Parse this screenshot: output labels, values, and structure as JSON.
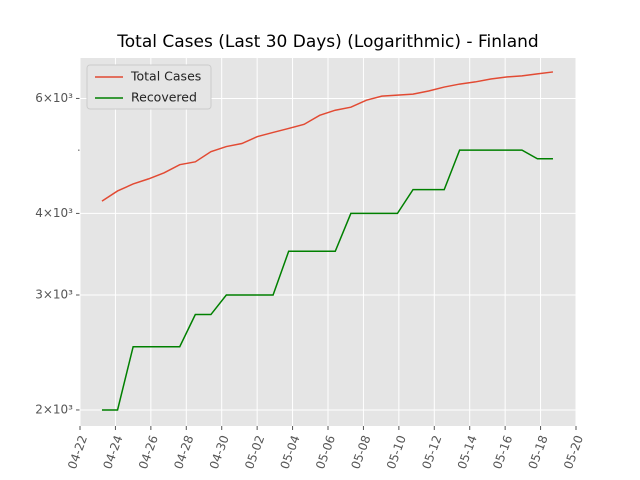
{
  "chart_data": {
    "type": "line",
    "title": "Total Cases (Last 30 Days) (Logarithmic) - Finland",
    "x": [
      1.24,
      2.12,
      3.0,
      3.87,
      4.75,
      5.63,
      6.51,
      7.39,
      8.26,
      9.14,
      10.02,
      10.9,
      11.78,
      12.65,
      13.53,
      14.41,
      15.29,
      16.17,
      17.04,
      17.92,
      18.8,
      19.68,
      20.56,
      21.43,
      22.31,
      23.19,
      24.07,
      24.95,
      25.82,
      26.7
    ],
    "series": [
      {
        "name": "Total Cases",
        "color": "#e24a33",
        "values": [
          4178,
          4330,
          4438,
          4518,
          4616,
          4750,
          4798,
          4974,
          5064,
          5118,
          5246,
          5322,
          5398,
          5476,
          5654,
          5756,
          5818,
          5964,
          6050,
          6070,
          6092,
          6160,
          6246,
          6312,
          6360,
          6426,
          6472,
          6496,
          6542,
          6588
        ]
      },
      {
        "name": "Recovered",
        "color": "#008000",
        "values": [
          2000,
          2000,
          2500,
          2500,
          2500,
          2500,
          2800,
          2800,
          3000,
          3000,
          3000,
          3000,
          3500,
          3500,
          3500,
          3500,
          4000,
          4000,
          4000,
          4000,
          4350,
          4350,
          4350,
          5000,
          5000,
          5000,
          5000,
          5000,
          4850,
          4850
        ]
      }
    ],
    "xlim": [
      0,
      28
    ],
    "xticks": [
      {
        "value": 0,
        "label": "04-22"
      },
      {
        "value": 2,
        "label": "04-24"
      },
      {
        "value": 4,
        "label": "04-26"
      },
      {
        "value": 6,
        "label": "04-28"
      },
      {
        "value": 8,
        "label": "04-30"
      },
      {
        "value": 10,
        "label": "05-02"
      },
      {
        "value": 12,
        "label": "05-04"
      },
      {
        "value": 14,
        "label": "05-06"
      },
      {
        "value": 16,
        "label": "05-08"
      },
      {
        "value": 18,
        "label": "05-10"
      },
      {
        "value": 20,
        "label": "05-12"
      },
      {
        "value": 22,
        "label": "05-14"
      },
      {
        "value": 24,
        "label": "05-16"
      },
      {
        "value": 26,
        "label": "05-18"
      },
      {
        "value": 28,
        "label": "05-20"
      }
    ],
    "ylim": [
      1890,
      6920
    ],
    "yscale": "log",
    "yticks": [
      {
        "value": 2000,
        "label": "2×10³"
      },
      {
        "value": 3000,
        "label": "3×10³"
      },
      {
        "value": 4000,
        "label": "4×10³"
      },
      {
        "value": 6000,
        "label": "6×10³"
      }
    ],
    "yminorticks": [
      5000
    ],
    "grid": true,
    "legend": "upper left"
  }
}
